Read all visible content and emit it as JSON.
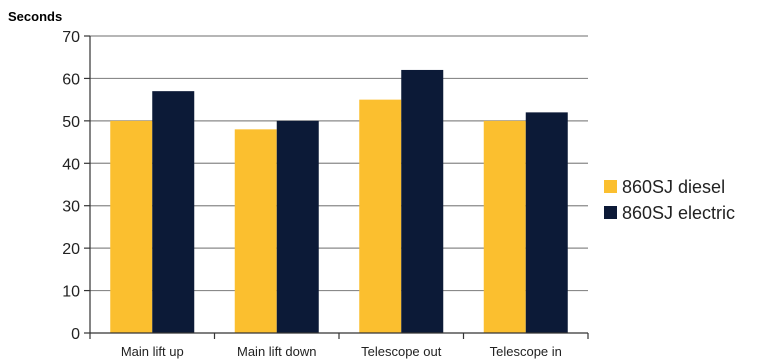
{
  "chart_data": {
    "type": "bar",
    "title": "",
    "xlabel": "",
    "ylabel": "Seconds",
    "ylim": [
      0,
      70
    ],
    "yticks": [
      0,
      10,
      20,
      30,
      40,
      50,
      60,
      70
    ],
    "grid": true,
    "legend_position": "right",
    "categories": [
      "Main lift up",
      "Main lift down",
      "Telescope out",
      "Telescope in"
    ],
    "series": [
      {
        "name": "860SJ diesel",
        "color": "#FBBF2F",
        "values": [
          50,
          48,
          55,
          50
        ]
      },
      {
        "name": "860SJ electric",
        "color": "#0C1A37",
        "values": [
          57,
          50,
          62,
          52
        ]
      }
    ]
  }
}
